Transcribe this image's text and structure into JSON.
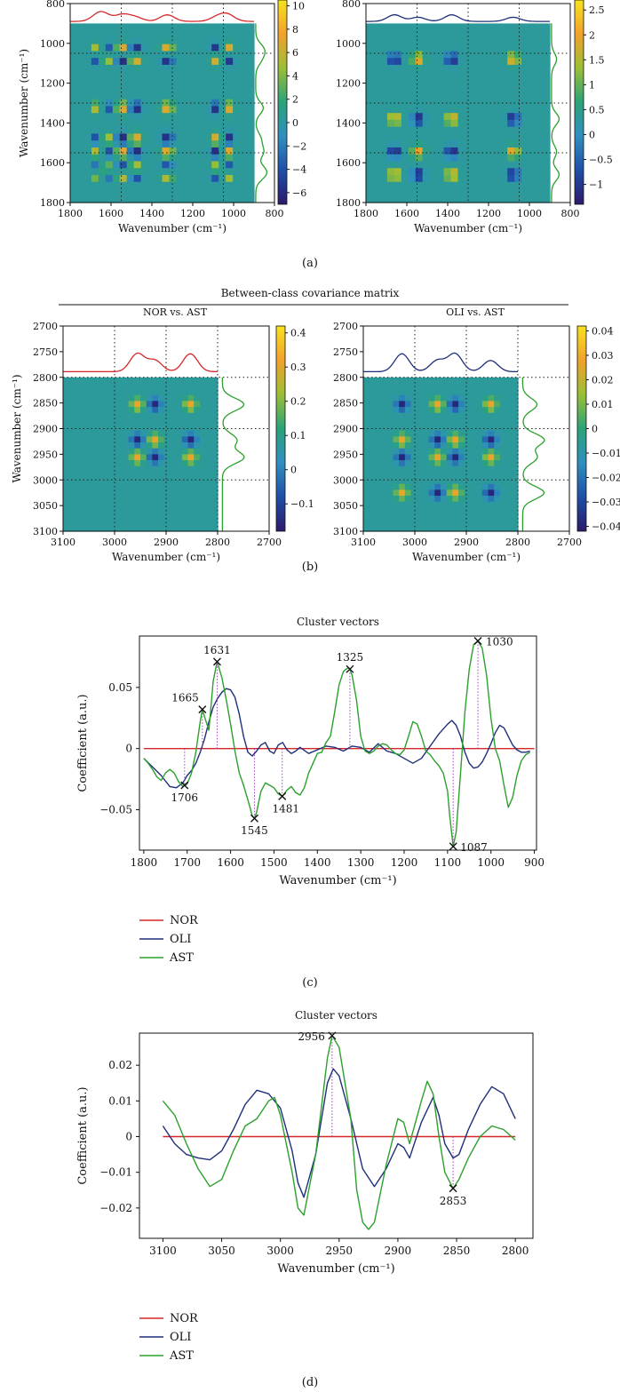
{
  "figure": {
    "panel_labels": [
      "(a)",
      "(b)",
      "(c)",
      "(d)"
    ],
    "section_b_title": "Between-class covariance matrix"
  },
  "colors": {
    "nor": "#d62728",
    "oli": "#1f2f7a",
    "ast": "#2ca02c",
    "colormap": [
      "#2b1a6b",
      "#1f4fa8",
      "#2f8fbf",
      "#2aa37a",
      "#9bbf35",
      "#f2a12b",
      "#f7e21e"
    ]
  },
  "chart_data": [
    {
      "type": "heatmap",
      "panel": "a-left",
      "xlabel": "Wavenumber (cm⁻¹)",
      "ylabel": "Wavenumber (cm⁻¹)",
      "xlim": [
        1800,
        800
      ],
      "ylim": [
        800,
        1800
      ],
      "x_ticks": [
        "1800",
        "1600",
        "1400",
        "1200",
        "1000",
        "800"
      ],
      "y_ticks": [
        "800",
        "1000",
        "1200",
        "1400",
        "1600",
        "1800"
      ],
      "colorbar_ticks": [
        "-6",
        "-4",
        "-2",
        "0",
        "2",
        "4",
        "6",
        "8",
        "10"
      ],
      "colorbar_range": [
        -7,
        10.5
      ],
      "peaks": [
        1660,
        1630,
        1545,
        1480,
        1325,
        1080,
        1030
      ],
      "diag_spectrum_color": "#d62728",
      "side_spectrum_color": "#2ca02c"
    },
    {
      "type": "heatmap",
      "panel": "a-right",
      "xlabel": "Wavenumber (cm⁻¹)",
      "xlim": [
        1800,
        800
      ],
      "ylim": [
        800,
        1800
      ],
      "x_ticks": [
        "1800",
        "1600",
        "1400",
        "1200",
        "1000",
        "800"
      ],
      "y_ticks": [
        "800",
        "1000",
        "1200",
        "1400",
        "1600",
        "1800"
      ],
      "colorbar_ticks": [
        "-1",
        "-0.5",
        "0",
        "0.5",
        "1",
        "1.5",
        "2",
        "2.5"
      ],
      "colorbar_range": [
        -1.4,
        2.7
      ],
      "peaks": [
        1660,
        1545,
        1380,
        1080
      ],
      "diag_spectrum_color": "#1f2f7a",
      "side_spectrum_color": "#2ca02c"
    },
    {
      "type": "heatmap",
      "panel": "b-left",
      "title": "NOR vs. AST",
      "xlabel": "Wavenumber (cm⁻¹)",
      "ylabel": "Wavenumber (cm⁻¹)",
      "xlim": [
        3100,
        2700
      ],
      "ylim": [
        2700,
        3100
      ],
      "x_ticks": [
        "3100",
        "3000",
        "2900",
        "2800",
        "2700"
      ],
      "y_ticks": [
        "2700",
        "2750",
        "2800",
        "2850",
        "2900",
        "2950",
        "3000",
        "3050",
        "3100"
      ],
      "colorbar_ticks": [
        "-0.1",
        "0",
        "0.1",
        "0.2",
        "0.3",
        "0.4"
      ],
      "colorbar_range": [
        -0.18,
        0.42
      ],
      "peaks": [
        2956,
        2922,
        2853
      ],
      "diag_spectrum_color": "#d62728",
      "side_spectrum_color": "#2ca02c"
    },
    {
      "type": "heatmap",
      "panel": "b-right",
      "title": "OLI vs. AST",
      "xlabel": "Wavenumber (cm⁻¹)",
      "xlim": [
        3100,
        2700
      ],
      "ylim": [
        2700,
        3100
      ],
      "x_ticks": [
        "3100",
        "3000",
        "2900",
        "2800",
        "2700"
      ],
      "y_ticks": [
        "2700",
        "2750",
        "2800",
        "2850",
        "2900",
        "2950",
        "3000",
        "3050",
        "3100"
      ],
      "colorbar_ticks": [
        "-0.04",
        "-0.03",
        "-0.02",
        "-0.01",
        "0",
        "0.01",
        "0.02",
        "0.03",
        "0.04"
      ],
      "colorbar_range": [
        -0.042,
        0.042
      ],
      "peaks": [
        3025,
        2956,
        2922,
        2853
      ],
      "diag_spectrum_color": "#1f2f7a",
      "side_spectrum_color": "#2ca02c"
    },
    {
      "type": "line",
      "panel": "c",
      "title": "Cluster vectors",
      "xlabel": "Wavenumber (cm⁻¹)",
      "ylabel": "Coefficient (a.u.)",
      "xlim": [
        1810,
        895
      ],
      "ylim": [
        -0.083,
        0.092
      ],
      "x_ticks": [
        1800,
        1700,
        1600,
        1500,
        1400,
        1300,
        1200,
        1100,
        1000,
        900
      ],
      "y_ticks": [
        -0.05,
        0,
        0.05
      ],
      "y_tick_labels": [
        "−0.05",
        "0",
        "0.05"
      ],
      "legend": [
        "NOR",
        "OLI",
        "AST"
      ],
      "legend_placement": "below",
      "annotations": [
        {
          "label": "1706",
          "x": 1706,
          "y": -0.03
        },
        {
          "label": "1665",
          "x": 1665,
          "y": 0.032
        },
        {
          "label": "1631",
          "x": 1631,
          "y": 0.071
        },
        {
          "label": "1545",
          "x": 1545,
          "y": -0.057
        },
        {
          "label": "1481",
          "x": 1481,
          "y": -0.039
        },
        {
          "label": "1325",
          "x": 1325,
          "y": 0.065
        },
        {
          "label": "1087",
          "x": 1087,
          "y": -0.08
        },
        {
          "label": "1030",
          "x": 1030,
          "y": 0.088
        }
      ],
      "series": [
        {
          "name": "NOR",
          "x": [
            1800,
            900
          ],
          "values": [
            0,
            0
          ]
        },
        {
          "name": "OLI",
          "x": [
            1800,
            1780,
            1760,
            1740,
            1725,
            1710,
            1700,
            1690,
            1680,
            1670,
            1660,
            1650,
            1640,
            1630,
            1620,
            1610,
            1600,
            1590,
            1580,
            1570,
            1560,
            1550,
            1540,
            1530,
            1520,
            1510,
            1500,
            1490,
            1480,
            1470,
            1460,
            1450,
            1440,
            1420,
            1400,
            1380,
            1360,
            1340,
            1320,
            1300,
            1280,
            1260,
            1240,
            1220,
            1200,
            1180,
            1160,
            1140,
            1120,
            1100,
            1090,
            1080,
            1070,
            1060,
            1050,
            1040,
            1030,
            1020,
            1010,
            1000,
            990,
            980,
            970,
            960,
            950,
            940,
            930,
            920,
            910
          ],
          "values": [
            -0.008,
            -0.015,
            -0.022,
            -0.031,
            -0.032,
            -0.028,
            -0.022,
            -0.018,
            -0.012,
            -0.003,
            0.008,
            0.022,
            0.034,
            0.041,
            0.046,
            0.049,
            0.048,
            0.042,
            0.028,
            0.01,
            -0.003,
            -0.006,
            -0.002,
            0.003,
            0.005,
            -0.002,
            -0.004,
            0.003,
            0.005,
            -0.001,
            -0.004,
            -0.002,
            0.001,
            -0.004,
            -0.001,
            0.002,
            0.001,
            -0.002,
            0.002,
            0.001,
            -0.003,
            0.004,
            -0.002,
            -0.004,
            -0.008,
            -0.012,
            -0.008,
            0.002,
            0.012,
            0.02,
            0.023,
            0.019,
            0.01,
            -0.003,
            -0.012,
            -0.016,
            -0.015,
            -0.011,
            -0.004,
            0.004,
            0.013,
            0.019,
            0.017,
            0.01,
            0.003,
            -0.001,
            -0.003,
            -0.003,
            -0.002
          ]
        },
        {
          "name": "AST",
          "x": [
            1800,
            1790,
            1780,
            1770,
            1760,
            1750,
            1740,
            1730,
            1720,
            1710,
            1700,
            1690,
            1680,
            1670,
            1665,
            1660,
            1650,
            1640,
            1631,
            1620,
            1610,
            1600,
            1590,
            1580,
            1570,
            1560,
            1550,
            1545,
            1540,
            1530,
            1520,
            1510,
            1500,
            1490,
            1481,
            1470,
            1460,
            1450,
            1440,
            1430,
            1420,
            1410,
            1400,
            1390,
            1380,
            1370,
            1360,
            1350,
            1340,
            1330,
            1325,
            1320,
            1310,
            1300,
            1290,
            1280,
            1270,
            1260,
            1250,
            1240,
            1230,
            1220,
            1210,
            1200,
            1190,
            1180,
            1170,
            1160,
            1150,
            1140,
            1130,
            1120,
            1110,
            1100,
            1095,
            1087,
            1080,
            1070,
            1060,
            1050,
            1040,
            1030,
            1020,
            1010,
            1000,
            990,
            980,
            970,
            960,
            950,
            940,
            930,
            920,
            910
          ],
          "values": [
            -0.008,
            -0.012,
            -0.017,
            -0.023,
            -0.026,
            -0.02,
            -0.017,
            -0.02,
            -0.027,
            -0.031,
            -0.029,
            -0.02,
            -0.003,
            0.022,
            0.032,
            0.026,
            0.015,
            0.055,
            0.071,
            0.058,
            0.04,
            0.02,
            -0.002,
            -0.02,
            -0.03,
            -0.042,
            -0.055,
            -0.057,
            -0.052,
            -0.035,
            -0.028,
            -0.03,
            -0.032,
            -0.037,
            -0.039,
            -0.034,
            -0.031,
            -0.036,
            -0.038,
            -0.032,
            -0.02,
            -0.012,
            -0.004,
            -0.003,
            0.005,
            0.01,
            0.03,
            0.052,
            0.063,
            0.066,
            0.065,
            0.06,
            0.04,
            0.01,
            -0.002,
            -0.004,
            -0.002,
            0.002,
            0.004,
            0.003,
            -0.001,
            -0.004,
            -0.005,
            -0.001,
            0.01,
            0.022,
            0.02,
            0.01,
            -0.002,
            -0.005,
            -0.01,
            -0.014,
            -0.02,
            -0.035,
            -0.055,
            -0.08,
            -0.068,
            -0.02,
            0.03,
            0.065,
            0.085,
            0.088,
            0.082,
            0.06,
            0.025,
            0.0,
            -0.01,
            -0.03,
            -0.048,
            -0.04,
            -0.022,
            -0.01,
            -0.005,
            -0.003
          ]
        }
      ]
    },
    {
      "type": "line",
      "panel": "d",
      "title": "Cluster vectors",
      "xlabel": "Wavenumber (cm⁻¹)",
      "ylabel": "Coefficient (a.u.)",
      "xlim": [
        3120,
        2785
      ],
      "ylim": [
        -0.0285,
        0.029
      ],
      "x_ticks": [
        3100,
        3050,
        3000,
        2950,
        2900,
        2850,
        2800
      ],
      "y_ticks": [
        -0.02,
        -0.01,
        0,
        0.01,
        0.02
      ],
      "y_tick_labels": [
        "−0.02",
        "−0.01",
        "0",
        "0.01",
        "0.02"
      ],
      "legend": [
        "NOR",
        "OLI",
        "AST"
      ],
      "legend_placement": "below",
      "annotations": [
        {
          "label": "2956",
          "x": 2956,
          "y": 0.0283
        },
        {
          "label": "2853",
          "x": 2853,
          "y": -0.0145
        }
      ],
      "series": [
        {
          "name": "NOR",
          "x": [
            3100,
            2800
          ],
          "values": [
            0,
            0
          ]
        },
        {
          "name": "OLI",
          "x": [
            3100,
            3090,
            3080,
            3070,
            3060,
            3050,
            3040,
            3030,
            3020,
            3010,
            3000,
            2990,
            2985,
            2980,
            2970,
            2960,
            2955,
            2950,
            2940,
            2930,
            2920,
            2910,
            2900,
            2895,
            2890,
            2880,
            2870,
            2865,
            2860,
            2853,
            2848,
            2840,
            2830,
            2820,
            2810,
            2800
          ],
          "values": [
            0.003,
            -0.002,
            -0.005,
            -0.006,
            -0.0065,
            -0.004,
            0.002,
            0.009,
            0.013,
            0.012,
            0.008,
            -0.004,
            -0.013,
            -0.017,
            -0.005,
            0.015,
            0.019,
            0.017,
            0.005,
            -0.009,
            -0.014,
            -0.009,
            -0.002,
            -0.003,
            -0.006,
            0.004,
            0.011,
            0.006,
            -0.002,
            -0.006,
            -0.005,
            0.002,
            0.009,
            0.014,
            0.012,
            0.005
          ]
        },
        {
          "name": "AST",
          "x": [
            3100,
            3090,
            3080,
            3070,
            3060,
            3050,
            3040,
            3030,
            3020,
            3010,
            3005,
            3000,
            2990,
            2985,
            2980,
            2970,
            2960,
            2956,
            2950,
            2940,
            2935,
            2930,
            2925,
            2920,
            2910,
            2900,
            2895,
            2890,
            2880,
            2875,
            2870,
            2865,
            2860,
            2853,
            2848,
            2840,
            2830,
            2820,
            2810,
            2800
          ],
          "values": [
            0.01,
            0.006,
            -0.002,
            -0.009,
            -0.014,
            -0.012,
            -0.004,
            0.003,
            0.005,
            0.01,
            0.011,
            0.006,
            -0.01,
            -0.02,
            -0.022,
            -0.005,
            0.022,
            0.0283,
            0.025,
            0.005,
            -0.015,
            -0.024,
            -0.026,
            -0.024,
            -0.008,
            0.005,
            0.004,
            -0.002,
            0.01,
            0.0155,
            0.012,
            0.0,
            -0.01,
            -0.0145,
            -0.012,
            -0.006,
            0.0,
            0.003,
            0.002,
            -0.001
          ]
        }
      ]
    }
  ]
}
